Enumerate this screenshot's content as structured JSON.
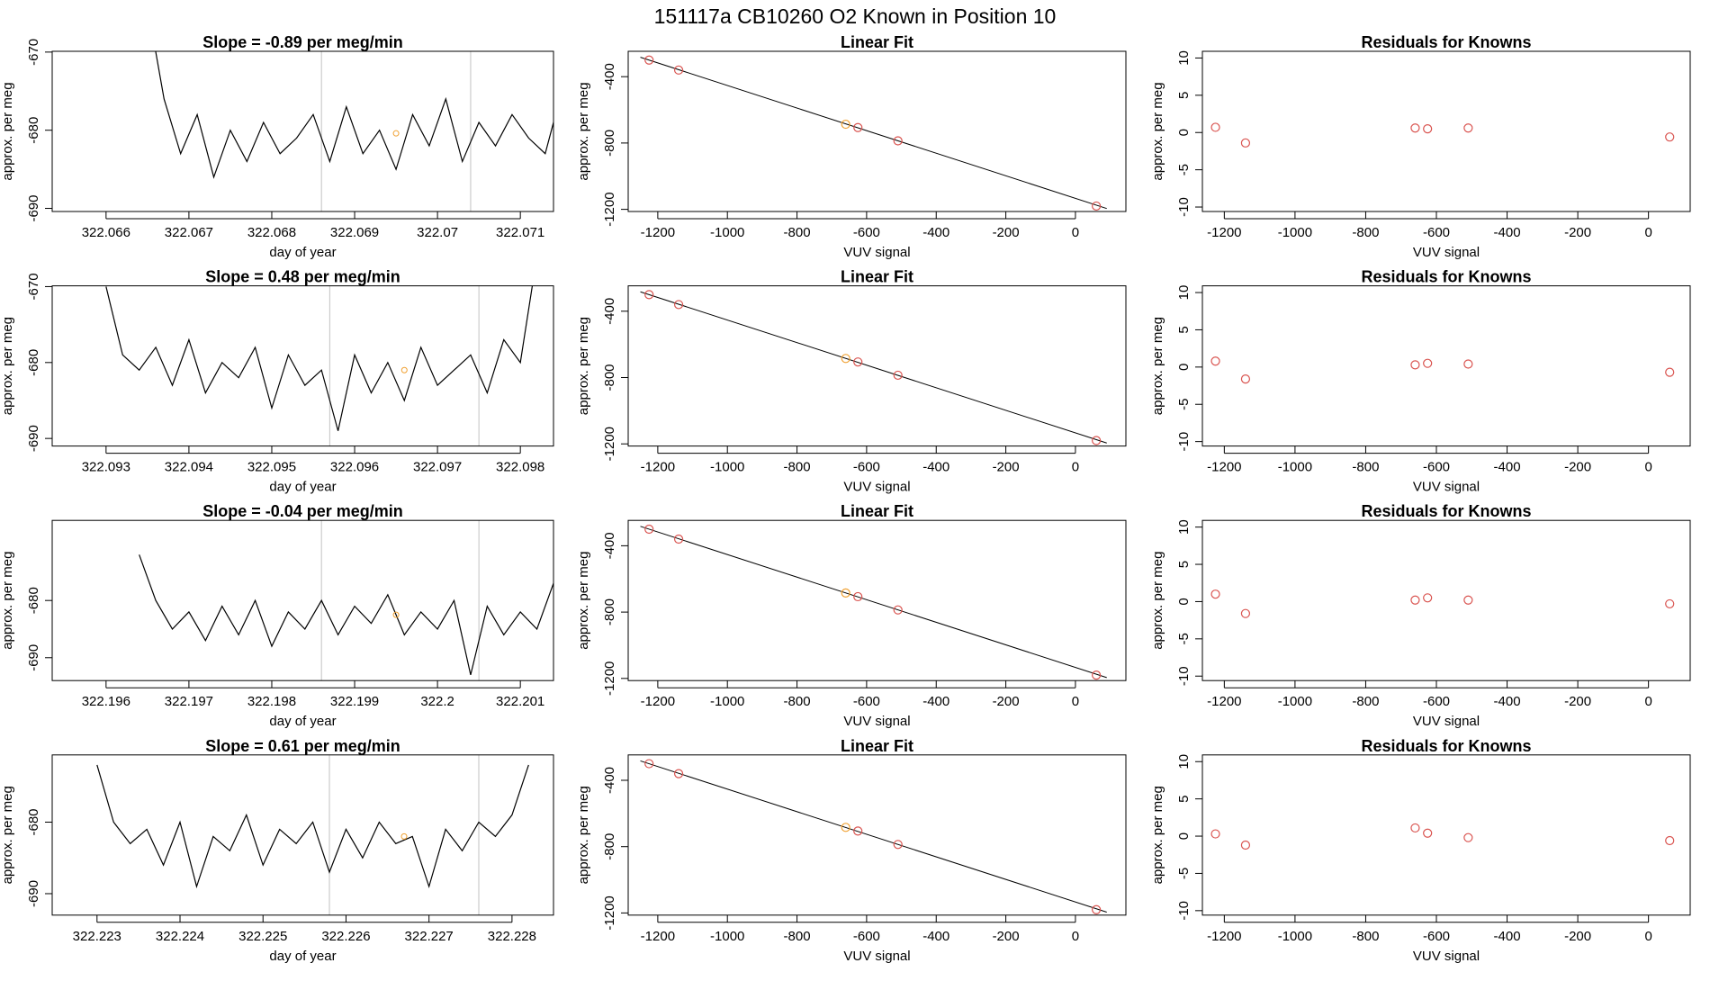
{
  "title": "151117a      CB10260    O2 Known in Position  10",
  "chart_data": [
    {
      "type": "line",
      "title": "Slope =  -0.89  per meg/min",
      "xlabel": "day of year",
      "ylabel": "approx. per meg",
      "color": "#000000",
      "x": [
        322.0665,
        322.0667,
        322.0669,
        322.0671,
        322.0673,
        322.0675,
        322.0677,
        322.0679,
        322.0681,
        322.0683,
        322.0685,
        322.0687,
        322.0689,
        322.0691,
        322.0693,
        322.0695,
        322.0697,
        322.0699,
        322.0701,
        322.0703,
        322.0705,
        322.0707,
        322.0709,
        322.0711,
        322.0713,
        322.0715
      ],
      "values": [
        -664,
        -676,
        -683,
        -678,
        -686,
        -680,
        -684,
        -679,
        -683,
        -681,
        -678,
        -684,
        -677,
        -683,
        -680,
        -685,
        -678,
        -682,
        -676,
        -684,
        -679,
        -682,
        -678,
        -681,
        -683,
        -675
      ],
      "vlines": [
        322.0686,
        322.0704
      ],
      "vline_color": "#cccccc",
      "marker": {
        "x": 322.0695,
        "y": -680.4,
        "color": "#f0a030"
      },
      "xlim": [
        322.06535,
        322.0714
      ],
      "ylim": [
        -690.4,
        -669.9
      ],
      "xticks": [
        322.066,
        322.067,
        322.068,
        322.069,
        322.07,
        322.071
      ],
      "yticks": [
        -670,
        -680,
        -690
      ]
    },
    {
      "type": "fit",
      "title": "Linear Fit",
      "xlabel": "VUV signal",
      "ylabel": "approx. per meg",
      "x": [
        -1225,
        -1140,
        -660,
        -625,
        -510,
        60
      ],
      "values": [
        -300,
        -360,
        -687,
        -707,
        -787,
        -1180
      ],
      "point_colors": [
        "#d9534f",
        "#d9534f",
        "#f0a030",
        "#d9534f",
        "#d9534f",
        "#d9534f"
      ],
      "fit_line": {
        "x": [
          -1250,
          90
        ],
        "y": [
          -283,
          -1195
        ],
        "color": "#000000"
      },
      "xlim": [
        -1285,
        145
      ],
      "ylim": [
        -1213,
        -247
      ],
      "xticks": [
        -1200,
        -1000,
        -800,
        -600,
        -400,
        -200,
        0
      ],
      "yticks": [
        -400,
        -800,
        -1200
      ]
    },
    {
      "type": "scatter",
      "title": "Residuals for Knowns",
      "xlabel": "VUV signal",
      "ylabel": "approx. per meg",
      "color": "#d9534f",
      "x": [
        -1225,
        -1140,
        -660,
        -625,
        -510,
        60
      ],
      "values": [
        0.7,
        -1.4,
        0.6,
        0.5,
        0.6,
        -0.6
      ],
      "xlim": [
        -1262,
        118
      ],
      "ylim": [
        -10.6,
        10.9
      ],
      "xticks": [
        -1200,
        -1000,
        -800,
        -600,
        -400,
        -200,
        0
      ],
      "yticks": [
        -10,
        -5,
        0,
        5,
        10
      ]
    },
    {
      "type": "line",
      "title": "Slope =  0.48  per meg/min",
      "xlabel": "day of year",
      "ylabel": "approx. per meg",
      "color": "#000000",
      "x": [
        322.093,
        322.0932,
        322.0934,
        322.0936,
        322.0938,
        322.094,
        322.0942,
        322.0944,
        322.0946,
        322.0948,
        322.095,
        322.0952,
        322.0954,
        322.0956,
        322.0958,
        322.096,
        322.0962,
        322.0964,
        322.0966,
        322.0968,
        322.097,
        322.0972,
        322.0974,
        322.0976,
        322.0978,
        322.098,
        322.0982
      ],
      "values": [
        -670,
        -679,
        -681,
        -678,
        -683,
        -677,
        -684,
        -680,
        -682,
        -678,
        -686,
        -679,
        -683,
        -681,
        -689,
        -679,
        -684,
        -680,
        -685,
        -678,
        -683,
        -681,
        -679,
        -684,
        -677,
        -680,
        -666
      ],
      "vlines": [
        322.0957,
        322.0975
      ],
      "vline_color": "#cccccc",
      "marker": {
        "x": 322.0966,
        "y": -681,
        "color": "#f0a030"
      },
      "xlim": [
        322.09235,
        322.0984
      ],
      "ylim": [
        -691,
        -669.9
      ],
      "xticks": [
        322.093,
        322.094,
        322.095,
        322.096,
        322.097,
        322.098
      ],
      "yticks": [
        -670,
        -680,
        -690
      ]
    },
    {
      "type": "fit",
      "title": "Linear Fit",
      "xlabel": "VUV signal",
      "ylabel": "approx. per meg",
      "x": [
        -1225,
        -1140,
        -660,
        -625,
        -510,
        60
      ],
      "values": [
        -300,
        -360,
        -685,
        -706,
        -786,
        -1180
      ],
      "point_colors": [
        "#d9534f",
        "#d9534f",
        "#f0a030",
        "#d9534f",
        "#d9534f",
        "#d9534f"
      ],
      "fit_line": {
        "x": [
          -1250,
          90
        ],
        "y": [
          -283,
          -1195
        ],
        "color": "#000000"
      },
      "xlim": [
        -1285,
        145
      ],
      "ylim": [
        -1213,
        -247
      ],
      "xticks": [
        -1200,
        -1000,
        -800,
        -600,
        -400,
        -200,
        0
      ],
      "yticks": [
        -400,
        -800,
        -1200
      ]
    },
    {
      "type": "scatter",
      "title": "Residuals for Knowns",
      "xlabel": "VUV signal",
      "ylabel": "approx. per meg",
      "color": "#d9534f",
      "x": [
        -1225,
        -1140,
        -660,
        -625,
        -510,
        60
      ],
      "values": [
        0.8,
        -1.6,
        0.3,
        0.5,
        0.4,
        -0.7
      ],
      "xlim": [
        -1262,
        118
      ],
      "ylim": [
        -10.6,
        10.9
      ],
      "xticks": [
        -1200,
        -1000,
        -800,
        -600,
        -400,
        -200,
        0
      ],
      "yticks": [
        -10,
        -5,
        0,
        5,
        10
      ]
    },
    {
      "type": "line",
      "title": "Slope =  -0.04  per meg/min",
      "xlabel": "day of year",
      "ylabel": "approx. per meg",
      "color": "#000000",
      "x": [
        322.1964,
        322.1966,
        322.1968,
        322.197,
        322.1972,
        322.1974,
        322.1976,
        322.1978,
        322.198,
        322.1982,
        322.1984,
        322.1986,
        322.1988,
        322.199,
        322.1992,
        322.1994,
        322.1996,
        322.1998,
        322.2,
        322.2002,
        322.2004,
        322.2006,
        322.2008,
        322.201,
        322.2012,
        322.2014,
        322.2016
      ],
      "values": [
        -672,
        -680,
        -685,
        -682,
        -687,
        -681,
        -686,
        -680,
        -688,
        -682,
        -685,
        -680,
        -686,
        -681,
        -684,
        -679,
        -686,
        -682,
        -685,
        -680,
        -693,
        -681,
        -686,
        -682,
        -685,
        -677,
        -672
      ],
      "vlines": [
        322.1986,
        322.2005
      ],
      "vline_color": "#cccccc",
      "marker": {
        "x": 322.1995,
        "y": -682.5,
        "color": "#f0a030"
      },
      "xlim": [
        322.19535,
        322.2014
      ],
      "ylim": [
        -694,
        -666
      ],
      "xticks": [
        322.196,
        322.197,
        322.198,
        322.199,
        322.2,
        322.201
      ],
      "yticks": [
        -680,
        -690
      ]
    },
    {
      "type": "fit",
      "title": "Linear Fit",
      "xlabel": "VUV signal",
      "ylabel": "approx. per meg",
      "x": [
        -1225,
        -1140,
        -660,
        -625,
        -510,
        60
      ],
      "values": [
        -300,
        -360,
        -685,
        -707,
        -787,
        -1180
      ],
      "point_colors": [
        "#d9534f",
        "#d9534f",
        "#f0a030",
        "#d9534f",
        "#d9534f",
        "#d9534f"
      ],
      "fit_line": {
        "x": [
          -1250,
          90
        ],
        "y": [
          -283,
          -1195
        ],
        "color": "#000000"
      },
      "xlim": [
        -1285,
        145
      ],
      "ylim": [
        -1213,
        -247
      ],
      "xticks": [
        -1200,
        -1000,
        -800,
        -600,
        -400,
        -200,
        0
      ],
      "yticks": [
        -400,
        -800,
        -1200
      ]
    },
    {
      "type": "scatter",
      "title": "Residuals for Knowns",
      "xlabel": "VUV signal",
      "ylabel": "approx. per meg",
      "color": "#d9534f",
      "x": [
        -1225,
        -1140,
        -660,
        -625,
        -510,
        60
      ],
      "values": [
        1.0,
        -1.6,
        0.2,
        0.5,
        0.2,
        -0.3
      ],
      "xlim": [
        -1262,
        118
      ],
      "ylim": [
        -10.6,
        10.9
      ],
      "xticks": [
        -1200,
        -1000,
        -800,
        -600,
        -400,
        -200,
        0
      ],
      "yticks": [
        -10,
        -5,
        0,
        5,
        10
      ]
    },
    {
      "type": "line",
      "title": "Slope =  0.61  per meg/min",
      "xlabel": "day of year",
      "ylabel": "approx. per meg",
      "color": "#000000",
      "x": [
        322.223,
        322.2232,
        322.2234,
        322.2236,
        322.2238,
        322.224,
        322.2242,
        322.2244,
        322.2246,
        322.2248,
        322.225,
        322.2252,
        322.2254,
        322.2256,
        322.2258,
        322.226,
        322.2262,
        322.2264,
        322.2266,
        322.2268,
        322.227,
        322.2272,
        322.2274,
        322.2276,
        322.2278,
        322.228,
        322.2282
      ],
      "values": [
        -672,
        -680,
        -683,
        -681,
        -686,
        -680,
        -689,
        -682,
        -684,
        -679,
        -686,
        -681,
        -683,
        -680,
        -687,
        -681,
        -685,
        -680,
        -683,
        -682,
        -689,
        -681,
        -684,
        -680,
        -682,
        -679,
        -672
      ],
      "vlines": [
        322.2258,
        322.2276
      ],
      "vline_color": "#cccccc",
      "marker": {
        "x": 322.2267,
        "y": -682,
        "color": "#f0a030"
      },
      "xlim": [
        322.22246,
        322.2285
      ],
      "ylim": [
        -693,
        -670.6
      ],
      "xticks": [
        322.223,
        322.224,
        322.225,
        322.226,
        322.227,
        322.228
      ],
      "yticks": [
        -680,
        -690
      ]
    },
    {
      "type": "fit",
      "title": "Linear Fit",
      "xlabel": "VUV signal",
      "ylabel": "approx. per meg",
      "x": [
        -1225,
        -1140,
        -660,
        -625,
        -510,
        60
      ],
      "values": [
        -300,
        -360,
        -684,
        -706,
        -787,
        -1180
      ],
      "point_colors": [
        "#d9534f",
        "#d9534f",
        "#f0a030",
        "#d9534f",
        "#d9534f",
        "#d9534f"
      ],
      "fit_line": {
        "x": [
          -1250,
          90
        ],
        "y": [
          -283,
          -1195
        ],
        "color": "#000000"
      },
      "xlim": [
        -1285,
        145
      ],
      "ylim": [
        -1213,
        -247
      ],
      "xticks": [
        -1200,
        -1000,
        -800,
        -600,
        -400,
        -200,
        0
      ],
      "yticks": [
        -400,
        -800,
        -1200
      ]
    },
    {
      "type": "scatter",
      "title": "Residuals for Knowns",
      "xlabel": "VUV signal",
      "ylabel": "approx. per meg",
      "color": "#d9534f",
      "x": [
        -1225,
        -1140,
        -660,
        -625,
        -510,
        60
      ],
      "values": [
        0.3,
        -1.2,
        1.1,
        0.4,
        -0.2,
        -0.6
      ],
      "xlim": [
        -1262,
        118
      ],
      "ylim": [
        -10.6,
        10.9
      ],
      "xticks": [
        -1200,
        -1000,
        -800,
        -600,
        -400,
        -200,
        0
      ],
      "yticks": [
        -10,
        -5,
        0,
        5,
        10
      ]
    }
  ]
}
